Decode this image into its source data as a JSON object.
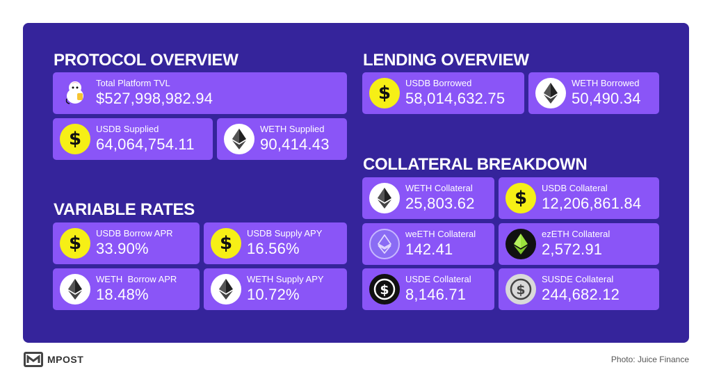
{
  "sections": {
    "protocol": "PROTOCOL OVERVIEW",
    "rates": "VARIABLE RATES",
    "lending": "LENDING OVERVIEW",
    "collateral": "COLLATERAL BREAKDOWN"
  },
  "protocol": {
    "tvl": {
      "label": "Total Platform TVL",
      "value": "$527,998,982.94",
      "icon": "juice-mascot-icon"
    },
    "usdb_supplied": {
      "label": "USDB Supplied",
      "value": "64,064,754.11",
      "icon": "usdb-icon"
    },
    "weth_supplied": {
      "label": "WETH Supplied",
      "value": "90,414.43",
      "icon": "ethereum-icon"
    }
  },
  "rates": {
    "usdb_borrow": {
      "label": "USDB Borrow APR",
      "value": "33.90%",
      "icon": "usdb-icon"
    },
    "usdb_supply": {
      "label": "USDB Supply APY",
      "value": "16.56%",
      "icon": "usdb-icon"
    },
    "weth_borrow": {
      "label": "WETH  Borrow APR",
      "value": "18.48%",
      "icon": "ethereum-icon"
    },
    "weth_supply": {
      "label": "WETH Supply APY",
      "value": "10.72%",
      "icon": "ethereum-icon"
    }
  },
  "lending": {
    "usdb_borrowed": {
      "label": "USDB Borrowed",
      "value": "58,014,632.75",
      "icon": "usdb-icon"
    },
    "weth_borrowed": {
      "label": "WETH Borrowed",
      "value": "50,490.34",
      "icon": "ethereum-icon"
    }
  },
  "collateral": {
    "weth": {
      "label": "WETH Collateral",
      "value": "25,803.62",
      "icon": "ethereum-icon"
    },
    "usdb": {
      "label": "USDB Collateral",
      "value": "12,206,861.84",
      "icon": "usdb-icon"
    },
    "weeth": {
      "label": "weETH Collateral",
      "value": "142.41",
      "icon": "weeth-icon"
    },
    "ezeth": {
      "label": "ezETH Collateral",
      "value": "2,572.91",
      "icon": "ezeth-icon"
    },
    "usde": {
      "label": "USDE Collateral",
      "value": "8,146.71",
      "icon": "usde-icon"
    },
    "susde": {
      "label": "SUSDE Collateral",
      "value": "244,682.12",
      "icon": "susde-icon"
    }
  },
  "footer": {
    "brand": "MPOST",
    "credit": "Photo: Juice Finance"
  },
  "colors": {
    "panel": "#35249b",
    "card": "#8a55f7",
    "usdb": "#f6ef16"
  }
}
